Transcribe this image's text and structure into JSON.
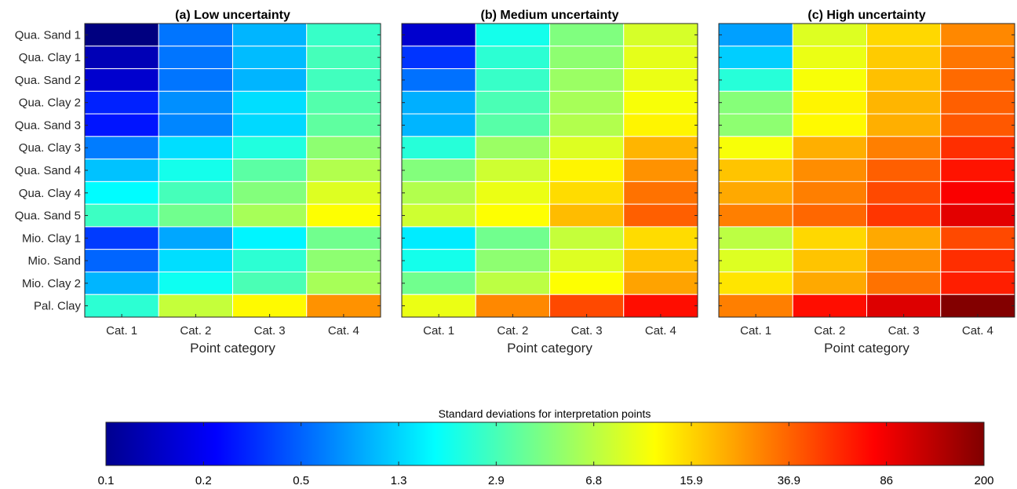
{
  "chart_data": {
    "type": "heatmap",
    "rows": [
      "Qua. Sand 1",
      "Qua. Clay 1",
      "Qua. Sand 2",
      "Qua. Clay 2",
      "Qua. Sand 3",
      "Qua. Clay 3",
      "Qua. Sand 4",
      "Qua. Clay 4",
      "Qua. Sand 5",
      "Mio. Clay 1",
      "Mio. Sand",
      "Mio. Clay 2",
      "Pal. Clay"
    ],
    "columns": [
      "Cat. 1",
      "Cat. 2",
      "Cat. 3",
      "Cat. 4"
    ],
    "xlabel": "Point category",
    "scale": "log",
    "panels": [
      {
        "title": "(a) Low uncertainty",
        "values": [
          [
            0.1,
            0.62,
            1.0,
            2.6
          ],
          [
            0.15,
            0.62,
            1.05,
            2.9
          ],
          [
            0.18,
            0.62,
            1.0,
            2.8
          ],
          [
            0.33,
            0.75,
            1.35,
            3.2
          ],
          [
            0.3,
            0.7,
            1.3,
            3.5
          ],
          [
            0.65,
            1.35,
            2.2,
            5.0
          ],
          [
            1.1,
            2.0,
            3.4,
            6.5
          ],
          [
            1.7,
            2.9,
            4.6,
            9.0
          ],
          [
            2.7,
            4.0,
            6.0,
            11.5
          ],
          [
            0.4,
            0.9,
            1.6,
            4.0
          ],
          [
            0.55,
            1.35,
            2.4,
            5.0
          ],
          [
            1.0,
            1.9,
            3.0,
            6.0
          ],
          [
            2.4,
            7.5,
            12.0,
            26.0
          ]
        ]
      },
      {
        "title": "(b) Medium uncertainty",
        "values": [
          [
            0.18,
            2.0,
            4.5,
            8.5
          ],
          [
            0.38,
            2.4,
            5.0,
            9.5
          ],
          [
            0.6,
            2.6,
            5.5,
            10.0
          ],
          [
            0.95,
            3.0,
            6.0,
            11.0
          ],
          [
            1.0,
            3.3,
            6.5,
            12.5
          ],
          [
            2.3,
            5.5,
            9.0,
            20.0
          ],
          [
            4.6,
            8.0,
            12.5,
            26.0
          ],
          [
            6.5,
            10.0,
            15.0,
            33.0
          ],
          [
            8.0,
            11.5,
            19.0,
            38.0
          ],
          [
            1.5,
            4.0,
            7.5,
            15.0
          ],
          [
            2.0,
            5.0,
            9.0,
            18.0
          ],
          [
            4.0,
            7.0,
            11.5,
            23.0
          ],
          [
            10.0,
            28.0,
            45.0,
            70.0
          ]
        ]
      },
      {
        "title": "(c) High uncertainty",
        "values": [
          [
            0.85,
            9.0,
            15.5,
            28.0
          ],
          [
            1.2,
            10.0,
            17.0,
            32.0
          ],
          [
            2.3,
            11.0,
            18.5,
            35.0
          ],
          [
            4.7,
            12.5,
            20.0,
            38.0
          ],
          [
            5.0,
            12.0,
            21.0,
            40.0
          ],
          [
            11.0,
            21.0,
            30.0,
            55.0
          ],
          [
            18.0,
            27.0,
            38.0,
            67.0
          ],
          [
            22.0,
            30.0,
            45.0,
            80.0
          ],
          [
            30.0,
            36.0,
            52.0,
            95.0
          ],
          [
            7.0,
            15.5,
            22.0,
            45.0
          ],
          [
            9.0,
            18.0,
            27.0,
            55.0
          ],
          [
            14.0,
            22.0,
            33.0,
            62.0
          ],
          [
            30.0,
            70.0,
            100.0,
            195.0
          ]
        ]
      }
    ],
    "colorbar": {
      "title": "Standard deviations for interpretation points",
      "colormap": "jet",
      "range": [
        0.1,
        200
      ],
      "ticks": [
        "0.1",
        "0.2",
        "0.5",
        "1.3",
        "2.9",
        "6.8",
        "15.9",
        "36.9",
        "86",
        "200"
      ]
    }
  }
}
